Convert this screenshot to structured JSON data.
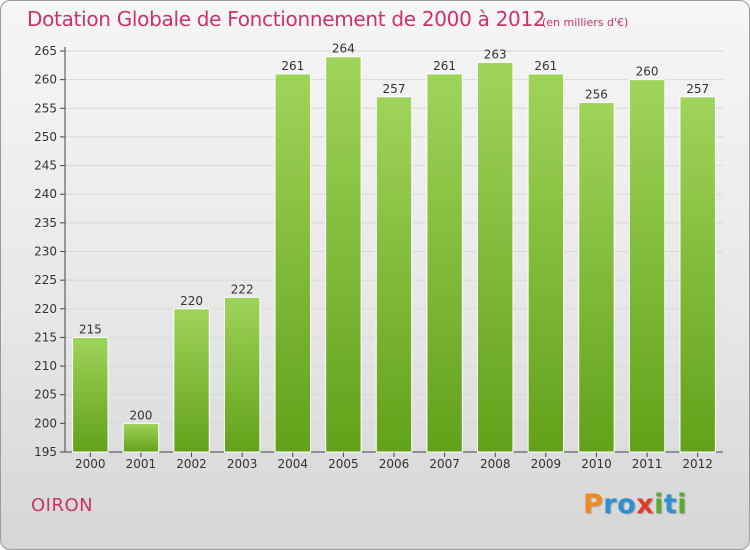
{
  "title": "Dotation Globale de Fonctionnement de 2000 à 2012",
  "unit_note": "(en milliers d'€)",
  "commune": "OIRON",
  "logo": {
    "text": "Proxiti",
    "letters": [
      {
        "char": "P",
        "color": "#f08a1c"
      },
      {
        "char": "r",
        "color": "#2f8fd0"
      },
      {
        "char": "o",
        "color": "#2f8fd0"
      },
      {
        "char": "x",
        "color": "#e23b2e"
      },
      {
        "char": "i",
        "color": "#5aa82d"
      },
      {
        "char": "t",
        "color": "#2f8fd0"
      },
      {
        "char": "i",
        "color": "#5aa82d"
      }
    ]
  },
  "colors": {
    "bar_top": "#9fd45a",
    "bar_bottom": "#62a11a",
    "title": "#c8336e",
    "grid": "#d8d8d8"
  },
  "chart_data": {
    "type": "bar",
    "categories": [
      "2000",
      "2001",
      "2002",
      "2003",
      "2004",
      "2005",
      "2006",
      "2007",
      "2008",
      "2009",
      "2010",
      "2011",
      "2012"
    ],
    "values": [
      215,
      200,
      220,
      222,
      261,
      264,
      257,
      261,
      263,
      261,
      256,
      260,
      257
    ],
    "ylim": [
      195,
      265
    ],
    "yticks": [
      195,
      200,
      205,
      210,
      215,
      220,
      225,
      230,
      235,
      240,
      245,
      250,
      255,
      260,
      265
    ],
    "grid": true,
    "xlabel": "",
    "ylabel": ""
  }
}
